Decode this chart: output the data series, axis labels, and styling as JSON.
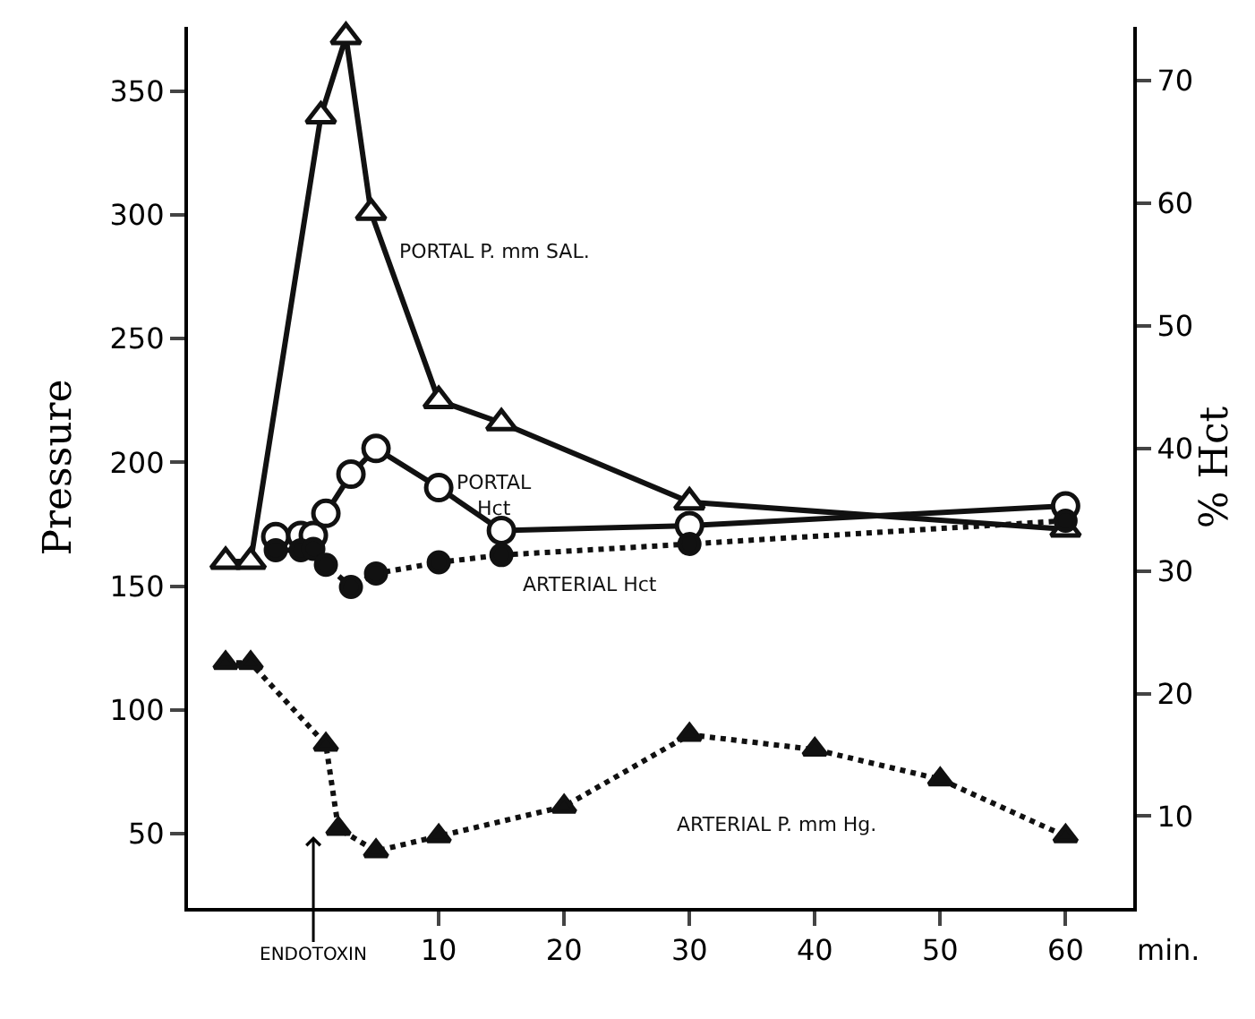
{
  "chart_data": {
    "type": "line",
    "ylabel": "Pressure",
    "y2label": "% Hct",
    "xlabel": "min.",
    "xlim": [
      -10,
      65.4
    ],
    "xticks": [
      10,
      20,
      30,
      40,
      50,
      60
    ],
    "ylim": [
      20,
      376
    ],
    "yticks": [
      50,
      100,
      150,
      200,
      250,
      300,
      350
    ],
    "y2lim": [
      2.5,
      74.4
    ],
    "y2ticks": [
      10,
      20,
      30,
      40,
      50,
      60,
      70
    ],
    "grid": false,
    "legend": false,
    "series": [
      {
        "name": "PORTAL P. mm SAL.",
        "color": "#111111",
        "marker": "triangle-open",
        "line_style": "solid",
        "x": [
          -7,
          -5,
          0.6,
          2.6,
          4.6,
          10,
          15,
          30,
          60
        ],
        "values": [
          160,
          160,
          340,
          372,
          301,
          225,
          216,
          184,
          173
        ]
      },
      {
        "name": "PORTAL\nHct",
        "color": "#111111",
        "marker": "circle-open",
        "line_style": "solid",
        "axis": "y2",
        "x": [
          -3,
          -1,
          0,
          1,
          3,
          5,
          10,
          15,
          30,
          60
        ],
        "values": [
          32.8,
          32.9,
          32.9,
          34.7,
          37.9,
          40,
          36.8,
          33.3,
          33.7,
          35.3
        ]
      },
      {
        "name": "ARTERIAL Hct",
        "color": "#111111",
        "marker": "circle",
        "line_style": "dotted",
        "axis": "y2",
        "x": [
          -3,
          -1,
          0,
          1,
          3,
          5,
          10,
          15,
          30,
          60
        ],
        "values": [
          31.7,
          31.7,
          31.8,
          30.5,
          28.7,
          29.8,
          30.7,
          31.3,
          32.2,
          34.1
        ]
      },
      {
        "name": "ARTERIAL P. mm Hg.",
        "color": "#111111",
        "marker": "triangle",
        "line_style": "dotted",
        "x": [
          -7,
          -5,
          1,
          2,
          5,
          10,
          20,
          30,
          40,
          50,
          60
        ],
        "values": [
          119,
          119,
          86,
          52,
          43,
          49,
          61,
          90,
          84,
          72,
          49
        ]
      }
    ],
    "ref_lines": [
      {
        "axis": "x",
        "value": 0,
        "label": "ENDOTOXIN"
      }
    ]
  }
}
